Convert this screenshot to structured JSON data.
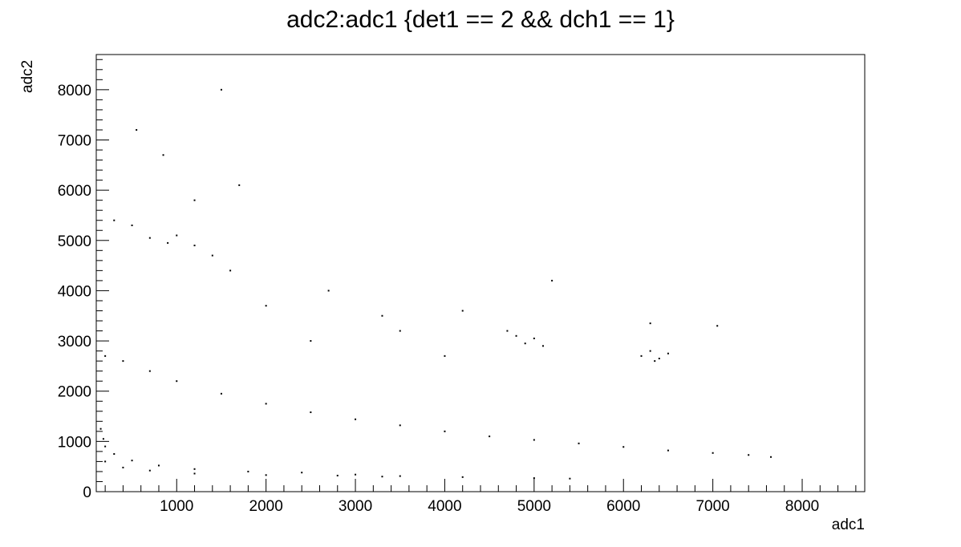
{
  "chart_data": {
    "type": "scatter",
    "title": "adc2:adc1 {det1 == 2 && dch1 == 1}",
    "xlabel": "adc1",
    "ylabel": "adc2",
    "xlim": [
      100,
      8700
    ],
    "ylim": [
      0,
      8700
    ],
    "x_ticks": [
      1000,
      2000,
      3000,
      4000,
      5000,
      6000,
      7000,
      8000
    ],
    "y_ticks": [
      0,
      1000,
      2000,
      3000,
      4000,
      5000,
      6000,
      7000,
      8000
    ],
    "grid": false,
    "marker_color": "#000000",
    "series": [
      {
        "points": [
          [
            150,
            1250
          ],
          [
            180,
            1050
          ],
          [
            200,
            900
          ],
          [
            300,
            750
          ],
          [
            500,
            620
          ],
          [
            800,
            520
          ],
          [
            1200,
            450
          ],
          [
            1800,
            400
          ],
          [
            2400,
            380
          ],
          [
            3000,
            340
          ],
          [
            3500,
            310
          ],
          [
            4200,
            290
          ],
          [
            5000,
            270
          ],
          [
            5400,
            260
          ],
          [
            200,
            600
          ],
          [
            400,
            480
          ],
          [
            700,
            420
          ],
          [
            1200,
            360
          ],
          [
            2000,
            330
          ],
          [
            2800,
            320
          ],
          [
            3300,
            300
          ],
          [
            200,
            2700
          ],
          [
            400,
            2600
          ],
          [
            700,
            2400
          ],
          [
            1000,
            2200
          ],
          [
            1500,
            1950
          ],
          [
            2000,
            1750
          ],
          [
            2500,
            1580
          ],
          [
            3000,
            1440
          ],
          [
            3500,
            1320
          ],
          [
            4000,
            1200
          ],
          [
            4500,
            1100
          ],
          [
            5000,
            1030
          ],
          [
            5500,
            960
          ],
          [
            6000,
            890
          ],
          [
            6500,
            820
          ],
          [
            7000,
            770
          ],
          [
            7400,
            730
          ],
          [
            7650,
            690
          ],
          [
            4800,
            3100
          ],
          [
            4900,
            2950
          ],
          [
            5000,
            3050
          ],
          [
            4700,
            3200
          ],
          [
            5100,
            2900
          ],
          [
            6200,
            2700
          ],
          [
            6300,
            2800
          ],
          [
            6400,
            2650
          ],
          [
            6500,
            2750
          ],
          [
            6350,
            2600
          ],
          [
            500,
            5300
          ],
          [
            700,
            5050
          ],
          [
            900,
            4950
          ],
          [
            1000,
            5100
          ],
          [
            1200,
            4900
          ],
          [
            1400,
            4700
          ],
          [
            1600,
            4400
          ],
          [
            300,
            5400
          ],
          [
            1500,
            8000
          ],
          [
            550,
            7200
          ],
          [
            850,
            6700
          ],
          [
            1200,
            5800
          ],
          [
            1700,
            6100
          ],
          [
            2000,
            3700
          ],
          [
            2700,
            4000
          ],
          [
            3300,
            3500
          ],
          [
            4200,
            3600
          ],
          [
            5200,
            4200
          ],
          [
            6300,
            3350
          ],
          [
            7050,
            3300
          ],
          [
            2500,
            3000
          ],
          [
            3500,
            3200
          ],
          [
            4000,
            2700
          ]
        ]
      }
    ]
  }
}
